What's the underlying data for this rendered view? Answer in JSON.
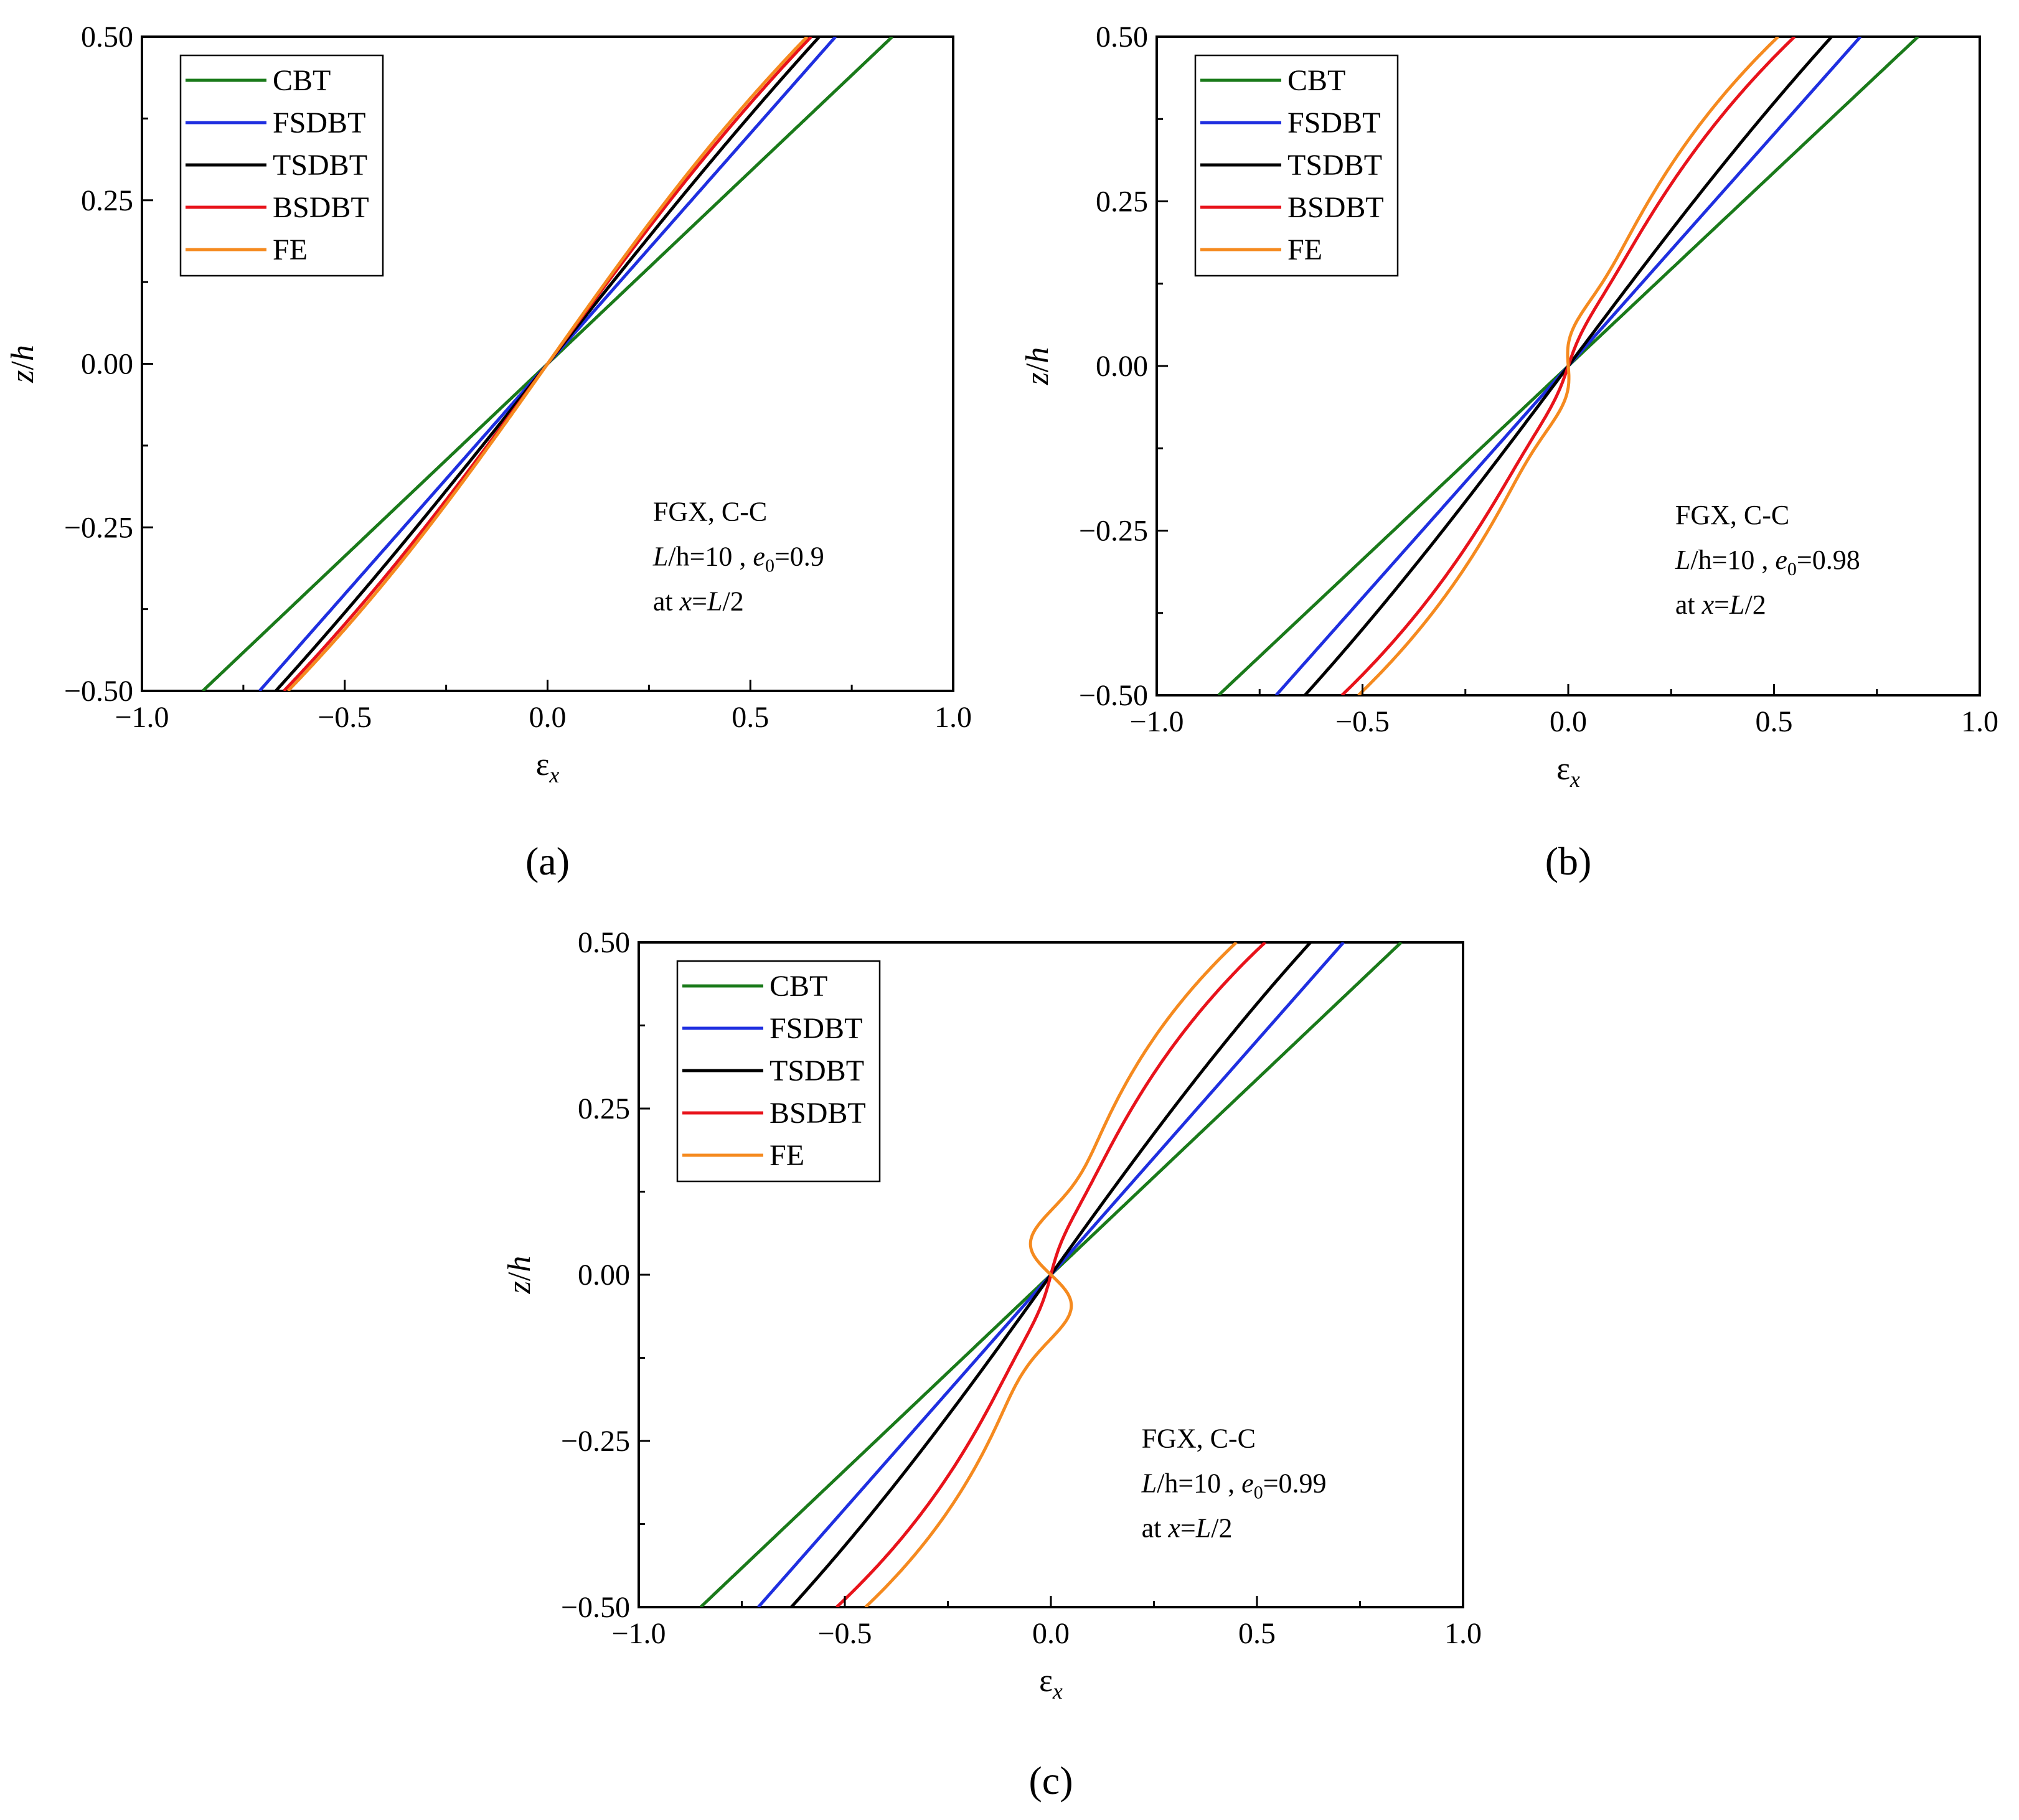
{
  "figure": {
    "panel_labels": [
      "(a)",
      "(b)",
      "(c)"
    ]
  },
  "chart_data": [
    {
      "type": "line",
      "panel": "(a)",
      "xlabel": "ε",
      "xlabel_sub": "x",
      "ylabel_italic_z": "z",
      "ylabel_sep": "/",
      "ylabel_italic_h": "h",
      "xlim": [
        -1.0,
        1.0
      ],
      "ylim": [
        -0.5,
        0.5
      ],
      "xticks": [
        -1.0,
        -0.5,
        0.0,
        0.5,
        1.0
      ],
      "xtick_labels": [
        "−1.0",
        "−0.5",
        "0.0",
        "0.5",
        "1.0"
      ],
      "yticks": [
        -0.5,
        -0.25,
        0.0,
        0.25,
        0.5
      ],
      "ytick_labels": [
        "−0.50",
        "−0.25",
        "0.00",
        "0.25",
        "0.50"
      ],
      "legend_position": "top-left",
      "annotation": {
        "line1": "FGX,  C-C",
        "l_italic": "L",
        "h_part": "/h=10 , ",
        "e_italic": "e",
        "e_sub": "0",
        "e_val": "=0.9",
        "at": "at ",
        "x_italic": "x",
        "eq": "=",
        "L_italic": "L",
        "div": "/2"
      },
      "series": [
        {
          "name": "CBT",
          "color": "#1a7a1a",
          "x_top": 0.85,
          "bend": 0.0,
          "bump": 0.0
        },
        {
          "name": "FSDBT",
          "color": "#1f2fe0",
          "x_top": 0.71,
          "bend": 0.0,
          "bump": 0.0
        },
        {
          "name": "TSDBT",
          "color": "#000000",
          "x_top": 0.67,
          "bend": 0.06,
          "bump": 0.0
        },
        {
          "name": "BSDBT",
          "color": "#e8131b",
          "x_top": 0.65,
          "bend": 0.12,
          "bump": 0.0
        },
        {
          "name": "FE",
          "color": "#f58a1f",
          "x_top": 0.64,
          "bend": 0.14,
          "bump": 0.0
        }
      ]
    },
    {
      "type": "line",
      "panel": "(b)",
      "xlabel": "ε",
      "xlabel_sub": "x",
      "ylabel_italic_z": "z",
      "ylabel_sep": "/",
      "ylabel_italic_h": "h",
      "xlim": [
        -1.0,
        1.0
      ],
      "ylim": [
        -0.5,
        0.5
      ],
      "xticks": [
        -1.0,
        -0.5,
        0.0,
        0.5,
        1.0
      ],
      "xtick_labels": [
        "−1.0",
        "−0.5",
        "0.0",
        "0.5",
        "1.0"
      ],
      "yticks": [
        -0.5,
        -0.25,
        0.0,
        0.25,
        0.5
      ],
      "ytick_labels": [
        "−0.50",
        "−0.25",
        "0.00",
        "0.25",
        "0.50"
      ],
      "legend_position": "top-left",
      "annotation": {
        "line1": "FGX,  C-C",
        "l_italic": "L",
        "h_part": "/h=10 , ",
        "e_italic": "e",
        "e_sub": "0",
        "e_val": "=0.98",
        "at": "at ",
        "x_italic": "x",
        "eq": "=",
        "L_italic": "L",
        "div": "/2"
      },
      "series": [
        {
          "name": "CBT",
          "color": "#1a7a1a",
          "x_top": 0.85,
          "bend": 0.0,
          "bump": 0.0
        },
        {
          "name": "FSDBT",
          "color": "#1f2fe0",
          "x_top": 0.71,
          "bend": 0.0,
          "bump": 0.0
        },
        {
          "name": "TSDBT",
          "color": "#000000",
          "x_top": 0.64,
          "bend": 0.08,
          "bump": 0.0
        },
        {
          "name": "BSDBT",
          "color": "#e8131b",
          "x_top": 0.55,
          "bend": 0.28,
          "bump": 0.01
        },
        {
          "name": "FE",
          "color": "#f58a1f",
          "x_top": 0.51,
          "bend": 0.32,
          "bump": 0.03
        }
      ]
    },
    {
      "type": "line",
      "panel": "(c)",
      "xlabel": "ε",
      "xlabel_sub": "x",
      "ylabel_italic_z": "z",
      "ylabel_sep": "/",
      "ylabel_italic_h": "h",
      "xlim": [
        -1.0,
        1.0
      ],
      "ylim": [
        -0.5,
        0.5
      ],
      "xticks": [
        -1.0,
        -0.5,
        0.0,
        0.5,
        1.0
      ],
      "xtick_labels": [
        "−1.0",
        "−0.5",
        "0.0",
        "0.5",
        "1.0"
      ],
      "yticks": [
        -0.5,
        -0.25,
        0.0,
        0.25,
        0.5
      ],
      "ytick_labels": [
        "−0.50",
        "−0.25",
        "0.00",
        "0.25",
        "0.50"
      ],
      "legend_position": "top-left",
      "annotation": {
        "line1": "FGX,  C-C",
        "l_italic": "L",
        "h_part": "/h=10 , ",
        "e_italic": "e",
        "e_sub": "0",
        "e_val": "=0.99",
        "at": "at ",
        "x_italic": "x",
        "eq": "=",
        "L_italic": "L",
        "div": "/2"
      },
      "series": [
        {
          "name": "CBT",
          "color": "#1a7a1a",
          "x_top": 0.85,
          "bend": 0.0,
          "bump": 0.0
        },
        {
          "name": "FSDBT",
          "color": "#1f2fe0",
          "x_top": 0.71,
          "bend": 0.0,
          "bump": 0.0
        },
        {
          "name": "TSDBT",
          "color": "#000000",
          "x_top": 0.63,
          "bend": 0.1,
          "bump": 0.0
        },
        {
          "name": "BSDBT",
          "color": "#e8131b",
          "x_top": 0.52,
          "bend": 0.34,
          "bump": 0.01
        },
        {
          "name": "FE",
          "color": "#f58a1f",
          "x_top": 0.45,
          "bend": 0.4,
          "bump": 0.08
        }
      ]
    }
  ]
}
